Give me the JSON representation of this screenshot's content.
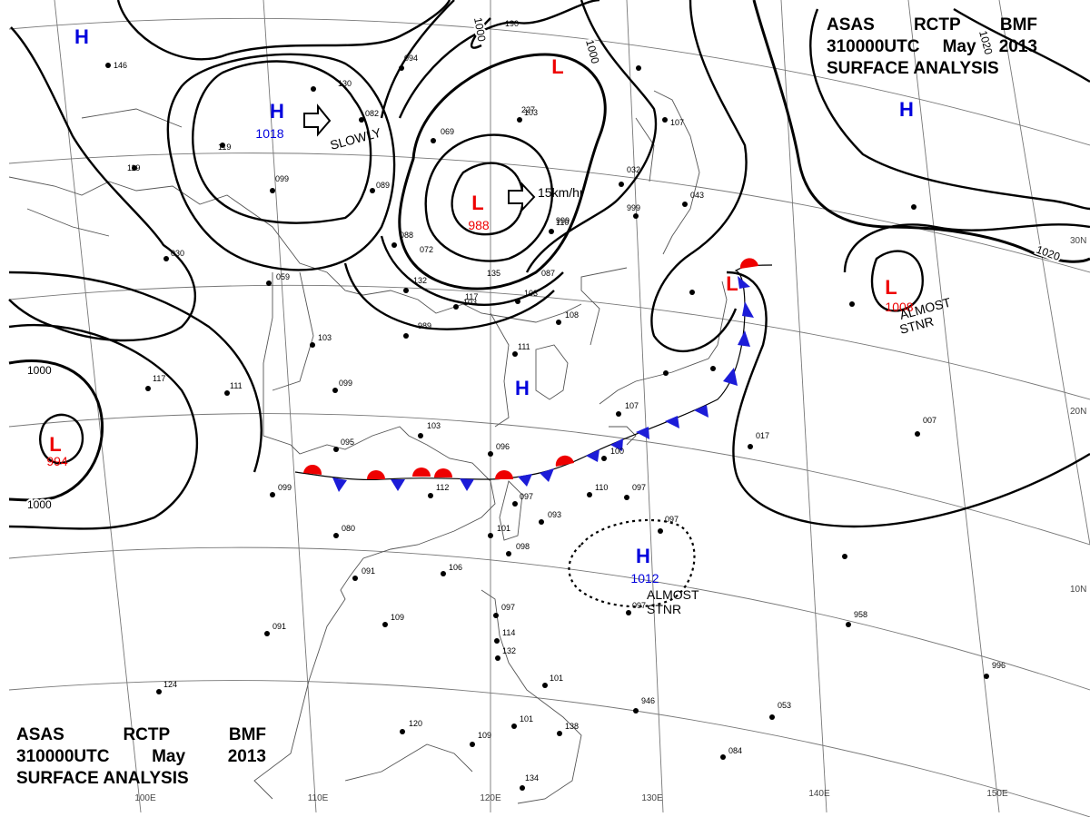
{
  "header_top": {
    "line1": [
      "ASAS",
      "RCTP",
      "BMF"
    ],
    "line2": [
      "310000UTC",
      "May",
      "2013"
    ],
    "line3": "SURFACE ANALYSIS"
  },
  "header_bottom": {
    "line1": [
      "ASAS",
      "RCTP",
      "BMF"
    ],
    "line2": [
      "310000UTC",
      "May",
      "2013"
    ],
    "line3": "SURFACE ANALYSIS"
  },
  "colors": {
    "high": "#0000dd",
    "low": "#ee0000",
    "line": "#000000",
    "coast": "#555555",
    "grid": "#666666"
  },
  "longitude_labels": [
    "100E",
    "110E",
    "120E",
    "130E",
    "140E",
    "150E"
  ],
  "latitude_labels": [
    "30N",
    "20N",
    "10N"
  ],
  "isobar_labels": [
    "1000",
    "1000",
    "1000",
    "1020",
    "1020",
    "1000"
  ],
  "pressure_centers": [
    {
      "type": "H",
      "value": "1018"
    },
    {
      "type": "L",
      "value": "988"
    },
    {
      "type": "L",
      "value": "994"
    },
    {
      "type": "L",
      "value": "1008"
    },
    {
      "type": "H",
      "value": "1012"
    },
    {
      "type": "H",
      "value": ""
    },
    {
      "type": "H",
      "value": ""
    },
    {
      "type": "H",
      "value": ""
    },
    {
      "type": "L",
      "value": ""
    },
    {
      "type": "L",
      "value": ""
    }
  ],
  "motion_annotations": [
    "SLOWLY",
    "15km/hr",
    "ALMOST\nSTNR",
    "ALMOST\nSTNR"
  ],
  "station_values": [
    "146",
    "130",
    "119",
    "119",
    "099",
    "089",
    "094",
    "082",
    "069",
    "088",
    "030",
    "059",
    "103",
    "132",
    "989",
    "117",
    "103",
    "103",
    "110",
    "111",
    "108",
    "117",
    "111",
    "099",
    "103",
    "095",
    "096",
    "099",
    "112",
    "097",
    "093",
    "101",
    "098",
    "080",
    "091",
    "106",
    "109",
    "091",
    "124",
    "120",
    "109",
    "101",
    "097",
    "114",
    "132",
    "101",
    "138",
    "134",
    "107",
    "100",
    "110",
    "097",
    "097",
    "097",
    "946",
    "053",
    "084",
    "017",
    "007",
    "958",
    "996",
    "999",
    "999",
    "043",
    "032",
    "107",
    "227",
    "190",
    "072",
    "135",
    "103",
    "087"
  ]
}
